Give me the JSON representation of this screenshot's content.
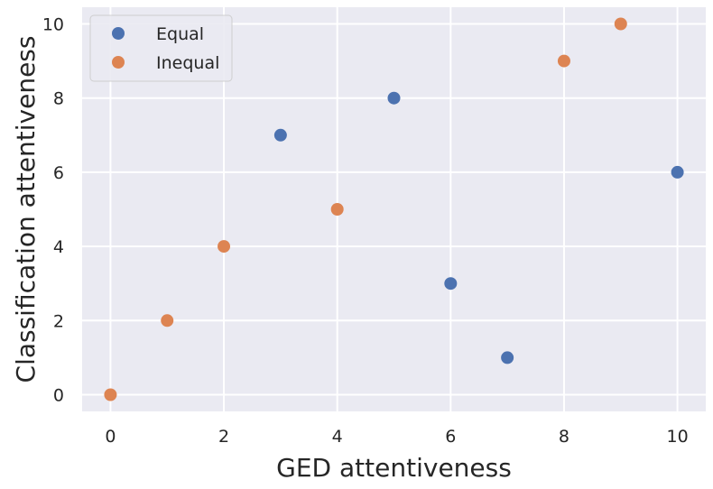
{
  "chart_data": {
    "type": "scatter",
    "xlabel": "GED attentiveness",
    "ylabel": "Classification attentiveness",
    "xlim": [
      -0.5,
      10.5
    ],
    "ylim": [
      -0.45,
      10.45
    ],
    "xticks": [
      0,
      2,
      4,
      6,
      8,
      10
    ],
    "yticks": [
      0,
      2,
      4,
      6,
      8,
      10
    ],
    "grid": true,
    "background": "#eaeaf2",
    "legend_position": "top-left",
    "series": [
      {
        "name": "Equal",
        "color": "#4c72b0",
        "points": [
          {
            "x": 3,
            "y": 7
          },
          {
            "x": 5,
            "y": 8
          },
          {
            "x": 6,
            "y": 3
          },
          {
            "x": 7,
            "y": 1
          },
          {
            "x": 10,
            "y": 6
          }
        ]
      },
      {
        "name": "Inequal",
        "color": "#dd8452",
        "points": [
          {
            "x": 0,
            "y": 0
          },
          {
            "x": 1,
            "y": 2
          },
          {
            "x": 2,
            "y": 4
          },
          {
            "x": 4,
            "y": 5
          },
          {
            "x": 8,
            "y": 9
          },
          {
            "x": 9,
            "y": 10
          }
        ]
      }
    ]
  }
}
